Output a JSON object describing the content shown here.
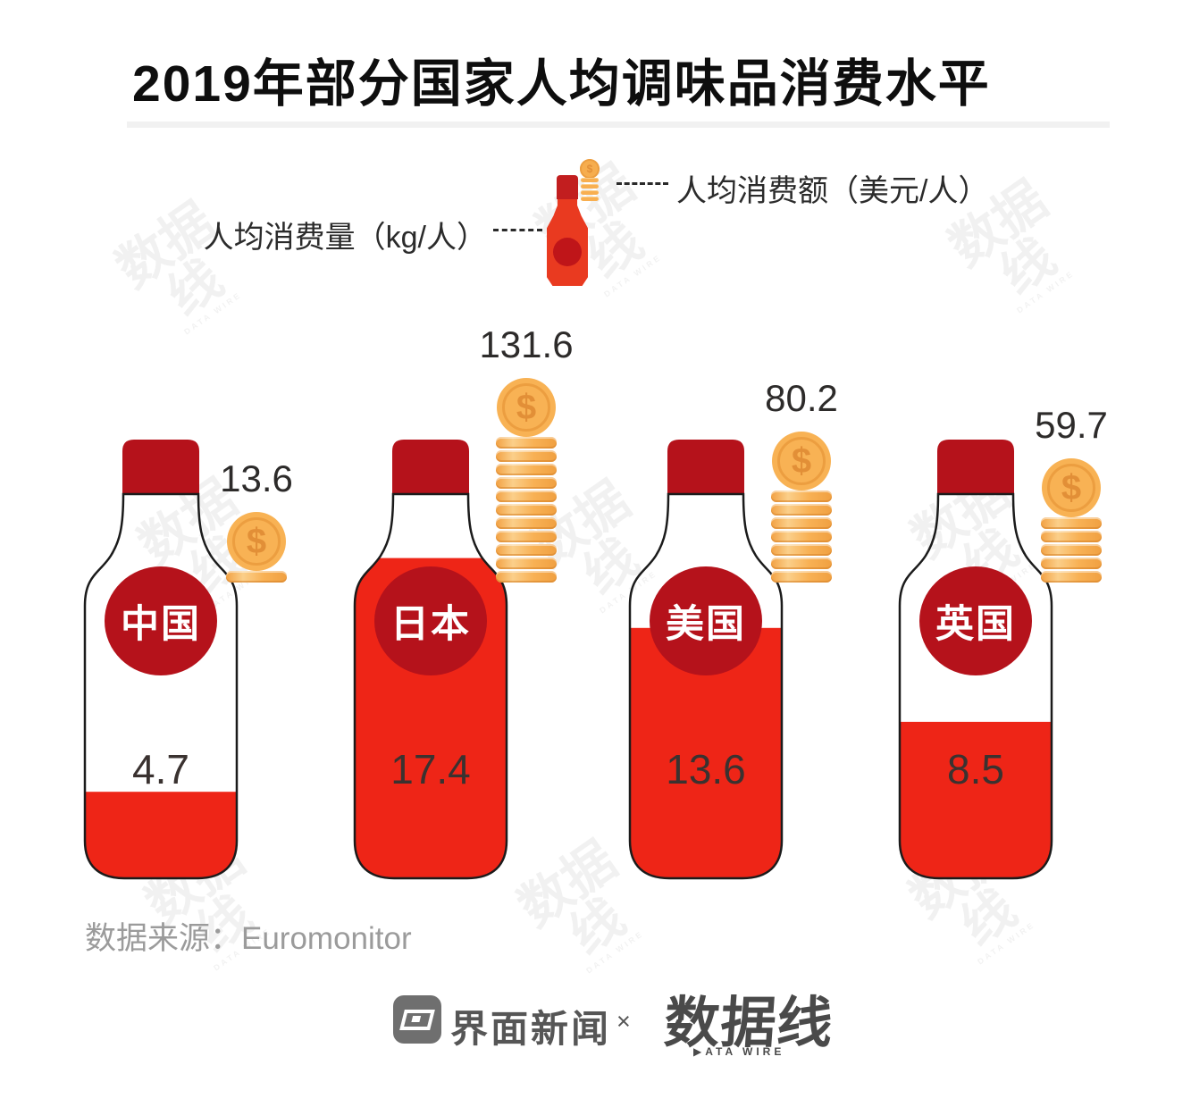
{
  "title": "2019年部分国家人均调味品消费水平",
  "legend": {
    "quantity_label": "人均消费量（kg/人）",
    "value_label": "人均消费额（美元/人）"
  },
  "countries": [
    {
      "name": "中国",
      "kg": 4.7,
      "kg_label": "4.7",
      "usd_label": "13.6",
      "coins": 1
    },
    {
      "name": "日本",
      "kg": 17.4,
      "kg_label": "17.4",
      "usd_label": "131.6",
      "coins": 11
    },
    {
      "name": "美国",
      "kg": 13.6,
      "kg_label": "13.6",
      "usd_label": "80.2",
      "coins": 7
    },
    {
      "name": "英国",
      "kg": 8.5,
      "kg_label": "8.5",
      "usd_label": "59.7",
      "coins": 5
    }
  ],
  "coin_symbol": "$",
  "source": "数据来源：Euromonitor",
  "footer": {
    "jiemian": "界面新闻",
    "separator": "×",
    "datawire_zh": "数据线",
    "datawire_en": "▶ATA WIRE"
  },
  "watermark": {
    "zh": "数据线",
    "en": "DATA WIRE"
  },
  "colors": {
    "bright_red": "#EE2517",
    "dark_red": "#B5121B",
    "coin_orange": "#F8AF50",
    "coin_symbol_orange": "#E28F37",
    "text_dark": "#2B2B2B",
    "text_gray": "#9B9B9B",
    "logo_gray": "#4A4A4A"
  },
  "chart_data": {
    "type": "bar",
    "categories": [
      "中国",
      "日本",
      "美国",
      "英国"
    ],
    "series": [
      {
        "name": "人均消费量（kg/人）",
        "values": [
          4.7,
          17.4,
          13.6,
          8.5
        ]
      },
      {
        "name": "人均消费额（美元/人）",
        "values": [
          13.6,
          131.6,
          80.2,
          59.7
        ]
      }
    ],
    "title": "2019年部分国家人均调味品消费水平",
    "source": "Euromonitor",
    "legend_position": "top",
    "grid": false
  }
}
